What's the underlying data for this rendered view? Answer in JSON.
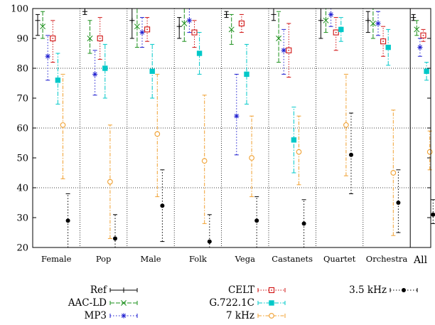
{
  "chart_data": {
    "type": "scatter",
    "title": "",
    "xlabel": "",
    "ylabel": "",
    "ylim": [
      20,
      100
    ],
    "yticks": [
      20,
      30,
      40,
      50,
      60,
      70,
      80,
      90,
      100
    ],
    "grid": "dotted horizontal lines at 40, 60, 80; dotted vertical separators between categories",
    "error_bars": true,
    "legend": "below the plot, three columns",
    "categories": [
      "Female",
      "Pop",
      "Male",
      "Folk",
      "Vega",
      "Castanets",
      "Quartet",
      "Orchestra",
      "All"
    ],
    "series": [
      {
        "name": "Ref",
        "color": "#000000",
        "marker": "plus",
        "dash": "",
        "mean": [
          96,
          99,
          96,
          94,
          98,
          98,
          96,
          96,
          97
        ],
        "low": [
          91,
          98,
          90,
          90,
          97,
          96,
          90,
          92,
          96
        ],
        "high": [
          98,
          100,
          100,
          97,
          99,
          100,
          100,
          99,
          98
        ]
      },
      {
        "name": "AAC-LD",
        "color": "#1a8f1a",
        "marker": "x",
        "dash": "6 2",
        "mean": [
          94,
          90,
          94,
          95,
          93,
          90,
          96,
          95,
          93
        ],
        "low": [
          90,
          85,
          87,
          89,
          88,
          82,
          92,
          90,
          91
        ],
        "high": [
          99,
          96,
          100,
          100,
          98,
          99,
          100,
          100,
          96
        ]
      },
      {
        "name": "MP3",
        "color": "#1f1fd0",
        "marker": "asterisk",
        "dash": "1.5 2.5",
        "mean": [
          84,
          78,
          92,
          96,
          64,
          86,
          98,
          95,
          87
        ],
        "low": [
          76,
          71,
          87,
          92,
          51,
          78,
          94,
          91,
          84
        ],
        "high": [
          91,
          86,
          97,
          100,
          78,
          93,
          100,
          99,
          90
        ]
      },
      {
        "name": "CELT",
        "color": "#d01010",
        "marker": "square-dot",
        "dash": "1.5 2",
        "mean": [
          90,
          90,
          93,
          92,
          95,
          86,
          92,
          89,
          91
        ],
        "low": [
          82,
          83,
          89,
          87,
          92,
          77,
          86,
          84,
          89
        ],
        "high": [
          96,
          97,
          97,
          96,
          98,
          95,
          97,
          94,
          93
        ]
      },
      {
        "name": "G.722.1C",
        "color": "#00c8c8",
        "marker": "filled-square",
        "dash": "6 2 1.5 2",
        "mean": [
          76,
          80,
          79,
          85,
          78,
          56,
          93,
          87,
          79
        ],
        "low": [
          68,
          70,
          70,
          78,
          68,
          45,
          89,
          81,
          76
        ],
        "high": [
          85,
          88,
          88,
          92,
          88,
          67,
          97,
          93,
          82
        ]
      },
      {
        "name": "7 kHz",
        "color": "#f0a030",
        "marker": "circle",
        "dash": "5 2 1.5 2",
        "mean": [
          61,
          42,
          58,
          49,
          50,
          52,
          61,
          45,
          52
        ],
        "low": [
          43,
          23,
          37,
          28,
          37,
          41,
          44,
          24,
          46
        ],
        "high": [
          78,
          61,
          78,
          71,
          64,
          64,
          78,
          66,
          59
        ]
      },
      {
        "name": "3.5 kHz",
        "color": "#000000",
        "marker": "filled-circle",
        "dash": "1.5 2.5",
        "mean": [
          29,
          23,
          34,
          22,
          29,
          28,
          51,
          35,
          31
        ],
        "low": [
          20,
          20,
          22,
          20,
          20,
          20,
          38,
          25,
          28
        ],
        "high": [
          38,
          31,
          46,
          31,
          37,
          36,
          65,
          46,
          36
        ]
      }
    ]
  }
}
